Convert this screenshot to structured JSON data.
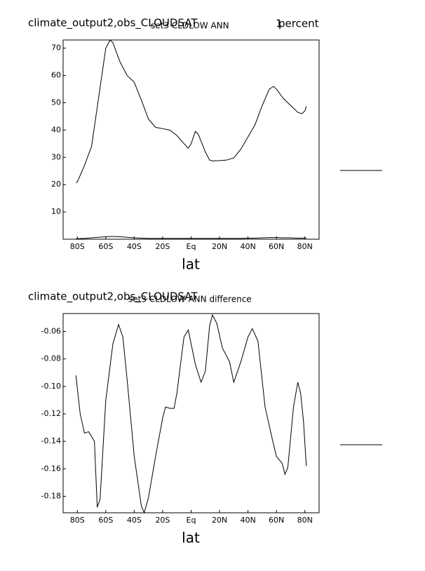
{
  "chart_data": [
    {
      "type": "line",
      "title": "climate_output2,obs_CLOUDSAT",
      "subtitle": "set3 CLDLOW ANN",
      "annotation": "1",
      "units": "percent",
      "xlabel": "lat",
      "x": [
        -81,
        -80,
        -75,
        -70,
        -65,
        -60,
        -57,
        -55,
        -50,
        -45,
        -40,
        -35,
        -30,
        -25,
        -20,
        -15,
        -10,
        -5,
        -2,
        0,
        3,
        5,
        10,
        13,
        15,
        20,
        25,
        30,
        35,
        40,
        45,
        50,
        55,
        58,
        60,
        65,
        70,
        75,
        78,
        80,
        81
      ],
      "series": [
        {
          "color": "#000000",
          "values": [
            20.8,
            21,
            27,
            34,
            52,
            70,
            73,
            72,
            65,
            60,
            57.5,
            51,
            44,
            41,
            40.5,
            40,
            38,
            35,
            33.3,
            35,
            39.5,
            38.5,
            32,
            29,
            28.7,
            28.8,
            29,
            29.8,
            33,
            37.5,
            42,
            49,
            55,
            56,
            55,
            51.5,
            49,
            46.5,
            46,
            47,
            48.7
          ]
        },
        {
          "color": "#000000",
          "values": [
            0.2,
            0.2,
            0.3,
            0.5,
            0.7,
            0.9,
            1,
            1,
            0.9,
            0.7,
            0.5,
            0.4,
            0.3,
            0.3,
            0.3,
            0.3,
            0.3,
            0.3,
            0.3,
            0.3,
            0.3,
            0.3,
            0.3,
            0.3,
            0.3,
            0.3,
            0.3,
            0.3,
            0.3,
            0.4,
            0.4,
            0.5,
            0.6,
            0.6,
            0.6,
            0.5,
            0.5,
            0.4,
            0.4,
            0.4,
            0.4
          ]
        }
      ],
      "xlim": [
        -90,
        90
      ],
      "ylim": [
        0,
        73
      ],
      "xticks": [
        {
          "value": -80,
          "label": "80S"
        },
        {
          "value": -60,
          "label": "60S"
        },
        {
          "value": -40,
          "label": "40S"
        },
        {
          "value": -20,
          "label": "20S"
        },
        {
          "value": 0,
          "label": "Eq"
        },
        {
          "value": 20,
          "label": "20N"
        },
        {
          "value": 40,
          "label": "40N"
        },
        {
          "value": 60,
          "label": "60N"
        },
        {
          "value": 80,
          "label": "80N"
        }
      ],
      "yticks": [
        10,
        20,
        30,
        40,
        50,
        60,
        70
      ]
    },
    {
      "type": "line",
      "title": "climate_output2,obs_CLOUDSAT",
      "subtitle": "set3 CLDLOW ANN difference",
      "xlabel": "lat",
      "x": [
        -81,
        -78,
        -75,
        -72,
        -68,
        -66,
        -64,
        -60,
        -55,
        -51,
        -48,
        -45,
        -40,
        -35,
        -33,
        -30,
        -25,
        -20,
        -18,
        -15,
        -12,
        -10,
        -5,
        -2,
        0,
        3,
        7,
        10,
        13,
        15,
        18,
        22,
        27,
        30,
        35,
        40,
        43,
        47,
        52,
        57,
        60,
        64,
        66,
        68,
        72,
        75,
        77,
        79,
        81
      ],
      "series": [
        {
          "color": "#000000",
          "values": [
            -0.092,
            -0.12,
            -0.134,
            -0.133,
            -0.14,
            -0.188,
            -0.182,
            -0.11,
            -0.069,
            -0.055,
            -0.064,
            -0.095,
            -0.151,
            -0.187,
            -0.192,
            -0.181,
            -0.151,
            -0.123,
            -0.115,
            -0.116,
            -0.116,
            -0.105,
            -0.064,
            -0.059,
            -0.069,
            -0.084,
            -0.097,
            -0.089,
            -0.056,
            -0.048,
            -0.054,
            -0.072,
            -0.082,
            -0.097,
            -0.082,
            -0.064,
            -0.058,
            -0.067,
            -0.115,
            -0.138,
            -0.151,
            -0.156,
            -0.164,
            -0.159,
            -0.115,
            -0.097,
            -0.105,
            -0.125,
            -0.158
          ]
        }
      ],
      "xlim": [
        -90,
        90
      ],
      "ylim": [
        -0.192,
        -0.047
      ],
      "xticks": [
        {
          "value": -80,
          "label": "80S"
        },
        {
          "value": -60,
          "label": "60S"
        },
        {
          "value": -40,
          "label": "40S"
        },
        {
          "value": -20,
          "label": "20S"
        },
        {
          "value": 0,
          "label": "Eq"
        },
        {
          "value": 20,
          "label": "20N"
        },
        {
          "value": 40,
          "label": "40N"
        },
        {
          "value": 60,
          "label": "60N"
        },
        {
          "value": 80,
          "label": "80N"
        }
      ],
      "yticks": [
        -0.18,
        -0.16,
        -0.14,
        -0.12,
        {
          "value": -0.1,
          "label": "-0.10"
        },
        -0.08,
        -0.06
      ]
    }
  ]
}
